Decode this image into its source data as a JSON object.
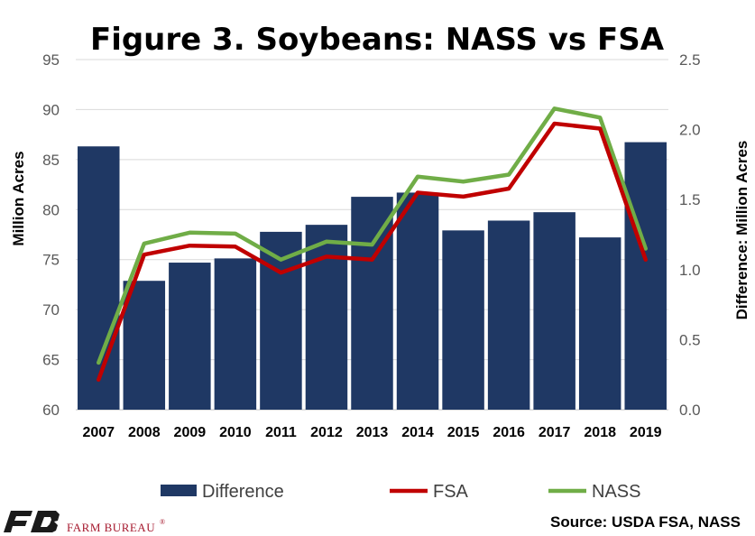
{
  "chart_data": {
    "type": "bar",
    "title": "Figure 3. Soybeans: NASS vs FSA",
    "ylabel": "Million Acres",
    "y2label": "Difference: Million Acres",
    "categories": [
      "2007",
      "2008",
      "2009",
      "2010",
      "2011",
      "2012",
      "2013",
      "2014",
      "2015",
      "2016",
      "2017",
      "2018",
      "2019"
    ],
    "ylim": [
      60,
      95
    ],
    "yticks": [
      "95",
      "90",
      "85",
      "80",
      "75",
      "70",
      "65",
      "60"
    ],
    "y2lim": [
      0,
      2.5
    ],
    "y2ticks": [
      "2.5",
      "2.0",
      "1.5",
      "1.0",
      "0.5",
      "0.0"
    ],
    "grid": true,
    "legend_position": "bottom",
    "series": [
      {
        "name": "Difference",
        "kind": "bar",
        "axis": "right",
        "color": "#1f3864",
        "values": [
          1.88,
          0.92,
          1.05,
          1.08,
          1.27,
          1.32,
          1.52,
          1.55,
          1.28,
          1.35,
          1.41,
          1.23,
          1.91
        ]
      },
      {
        "name": "FSA",
        "kind": "line",
        "axis": "left",
        "color": "#c00000",
        "values": [
          63.0,
          75.5,
          76.4,
          76.3,
          73.7,
          75.3,
          75.0,
          81.7,
          81.3,
          82.1,
          88.6,
          88.1,
          75.0
        ]
      },
      {
        "name": "NASS",
        "kind": "line",
        "axis": "left",
        "color": "#70ad47",
        "values": [
          64.7,
          76.6,
          77.7,
          77.6,
          75.0,
          76.8,
          76.5,
          83.3,
          82.8,
          83.5,
          90.1,
          89.2,
          76.1
        ]
      }
    ]
  },
  "source": "Source: USDA FSA, NASS",
  "logo_text": "FARM BUREAU",
  "logo_mark": "®"
}
